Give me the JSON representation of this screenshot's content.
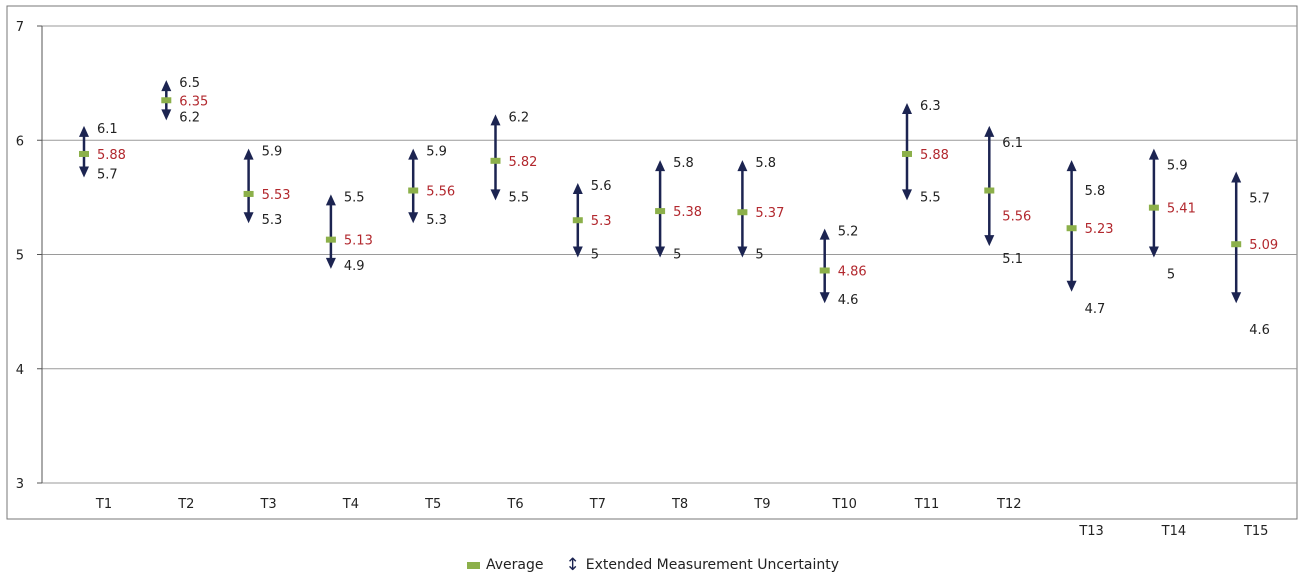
{
  "chart_data": {
    "type": "errorbar",
    "title": "",
    "xlabel": "",
    "ylabel": "",
    "ylim": [
      3,
      7
    ],
    "yticks": [
      3,
      4,
      5,
      6,
      7
    ],
    "grid": true,
    "legend_position": "bottom-center",
    "categories": [
      "T1",
      "T2",
      "T3",
      "T4",
      "T5",
      "T6",
      "T7",
      "T8",
      "T9",
      "T10",
      "T11",
      "T12",
      "T13",
      "T14",
      "T15"
    ],
    "average": [
      5.88,
      6.35,
      5.53,
      5.13,
      5.56,
      5.82,
      5.3,
      5.38,
      5.37,
      4.86,
      5.88,
      5.56,
      5.23,
      5.41,
      5.09
    ],
    "lower": [
      5.7,
      6.2,
      5.3,
      4.9,
      5.3,
      5.5,
      5,
      5,
      5,
      4.6,
      5.5,
      5.1,
      4.7,
      5,
      4.6
    ],
    "upper": [
      6.1,
      6.5,
      5.9,
      5.5,
      5.9,
      6.2,
      5.6,
      5.8,
      5.8,
      5.2,
      6.3,
      6.1,
      5.8,
      5.9,
      5.7
    ],
    "series": [
      {
        "name": "Average",
        "color": "#8cb04a"
      },
      {
        "name": "Extended Measurement Uncertainty",
        "color": "#1c2451"
      }
    ],
    "average_label_color": "#b2282e"
  }
}
